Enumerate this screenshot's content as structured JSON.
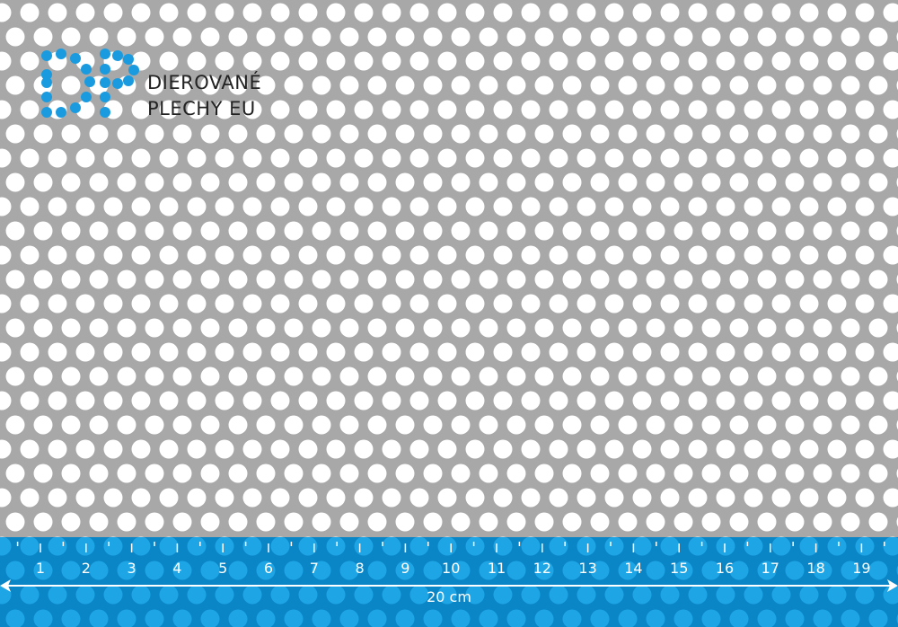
{
  "brand": {
    "line1": "DIEROVANÉ",
    "line2": "PLECHY EU",
    "logo_letters": "DP",
    "logo_color": "#1a9be0"
  },
  "ruler": {
    "labels": [
      "1",
      "2",
      "3",
      "4",
      "5",
      "6",
      "7",
      "8",
      "9",
      "10",
      "11",
      "12",
      "13",
      "14",
      "15",
      "16",
      "17",
      "18",
      "19"
    ],
    "length_label": "20 cm",
    "band_color": "#0a86c6",
    "hole_color": "#1ea5e6"
  },
  "sheet": {
    "metal_color": "#a8a8a8",
    "hole_color": "#ffffff"
  }
}
